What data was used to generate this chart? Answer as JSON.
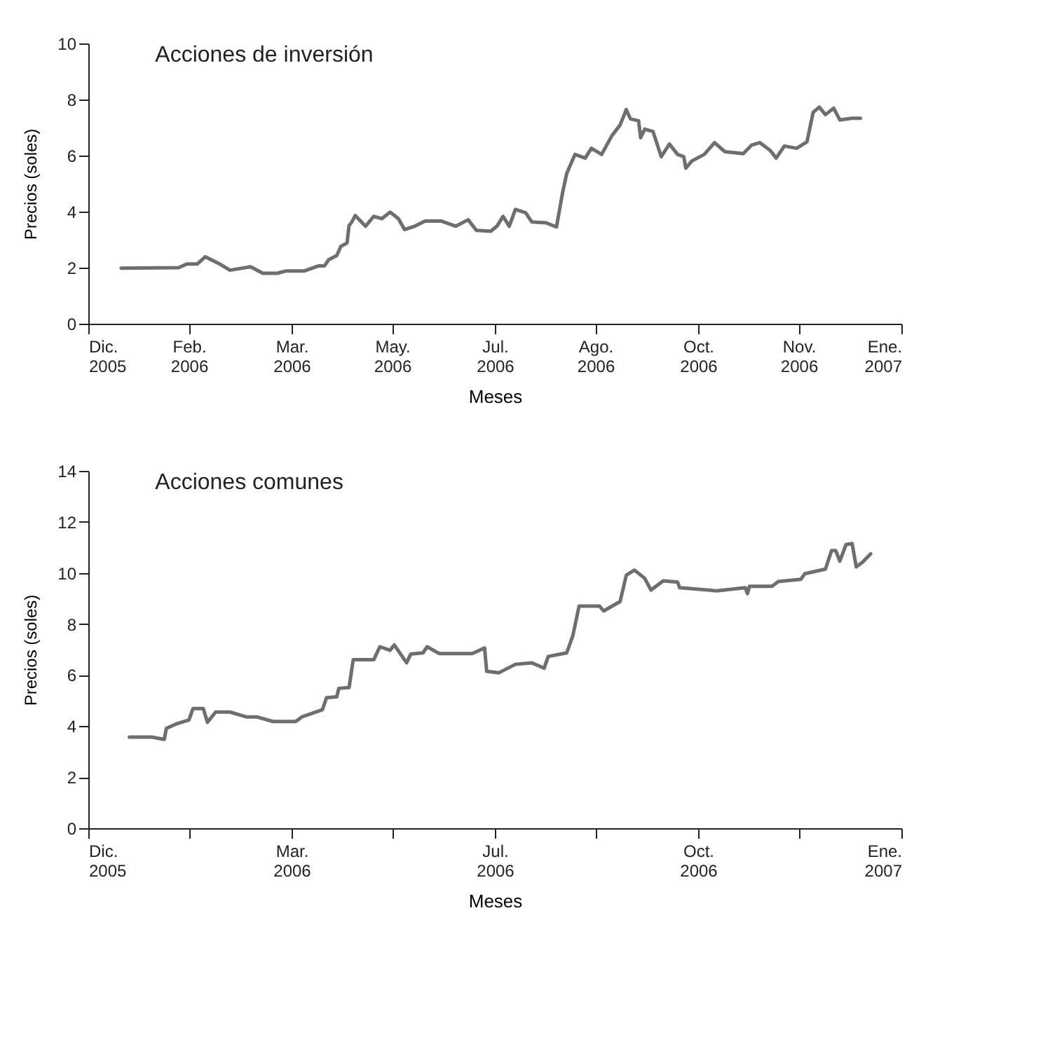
{
  "chart_data": [
    {
      "type": "line",
      "title": "Acciones de inversión",
      "xlabel": "Meses",
      "ylabel": "Precios (soles)",
      "xlim": [
        "2005-12-16",
        "2007-01-16"
      ],
      "xticks": [
        {
          "value": "2005-12-16",
          "label": "Dic. 2005"
        },
        {
          "value": "2006-02-03",
          "label": "Feb. 2006"
        },
        {
          "value": "2006-03-25",
          "label": "Mar. 2006"
        },
        {
          "value": "2006-05-13",
          "label": "May. 2006"
        },
        {
          "value": "2006-07-02",
          "label": "Jul. 2006"
        },
        {
          "value": "2006-08-20",
          "label": "Ago. 2006"
        },
        {
          "value": "2006-10-09",
          "label": "Oct. 2006"
        },
        {
          "value": "2006-11-27",
          "label": "Nov. 2006"
        },
        {
          "value": "2007-01-16",
          "label": "Ene. 2007"
        }
      ],
      "ylim": [
        0,
        10
      ],
      "yticks": [
        0,
        2,
        4,
        6,
        8,
        10
      ],
      "grid": false,
      "marker": "none",
      "line_style": "solid",
      "series": [
        {
          "color": "#6e6e6e",
          "x": [
            "2006-01-01",
            "2006-01-29",
            "2006-02-02",
            "2006-02-07",
            "2006-02-11",
            "2006-02-18",
            "2006-02-23",
            "2006-03-05",
            "2006-03-11",
            "2006-03-18",
            "2006-03-22",
            "2006-03-31",
            "2006-04-07",
            "2006-04-10",
            "2006-04-12",
            "2006-04-16",
            "2006-04-18",
            "2006-04-21",
            "2006-04-22",
            "2006-04-23",
            "2006-04-25",
            "2006-04-30",
            "2006-05-04",
            "2006-05-08",
            "2006-05-12",
            "2006-05-16",
            "2006-05-19",
            "2006-05-24",
            "2006-05-29",
            "2006-06-06",
            "2006-06-13",
            "2006-06-19",
            "2006-06-23",
            "2006-06-30",
            "2006-07-03",
            "2006-07-06",
            "2006-07-09",
            "2006-07-12",
            "2006-07-17",
            "2006-07-20",
            "2006-07-27",
            "2006-08-01",
            "2006-08-02",
            "2006-08-04",
            "2006-08-06",
            "2006-08-10",
            "2006-08-15",
            "2006-08-18",
            "2006-08-23",
            "2006-08-28",
            "2006-09-01",
            "2006-09-04",
            "2006-09-06",
            "2006-09-10",
            "2006-09-11",
            "2006-09-13",
            "2006-09-17",
            "2006-09-21",
            "2006-09-25",
            "2006-09-29",
            "2006-10-02",
            "2006-10-03",
            "2006-10-06",
            "2006-10-12",
            "2006-10-17",
            "2006-10-22",
            "2006-10-31",
            "2006-11-04",
            "2006-11-08",
            "2006-11-13",
            "2006-11-16",
            "2006-11-20",
            "2006-11-26",
            "2006-12-01",
            "2006-12-04",
            "2006-12-07",
            "2006-12-10",
            "2006-12-14",
            "2006-12-17",
            "2006-12-23",
            "2006-12-27"
          ],
          "values": [
            1.98,
            2.0,
            2.13,
            2.13,
            2.39,
            2.13,
            1.91,
            2.03,
            1.8,
            1.8,
            1.88,
            1.88,
            2.06,
            2.06,
            2.28,
            2.43,
            2.76,
            2.88,
            3.51,
            3.59,
            3.86,
            3.48,
            3.83,
            3.75,
            3.98,
            3.75,
            3.36,
            3.48,
            3.66,
            3.66,
            3.48,
            3.71,
            3.33,
            3.3,
            3.48,
            3.83,
            3.48,
            4.08,
            3.96,
            3.63,
            3.6,
            3.45,
            3.86,
            4.68,
            5.36,
            6.04,
            5.91,
            6.26,
            6.04,
            6.71,
            7.09,
            7.64,
            7.31,
            7.24,
            6.64,
            6.94,
            6.86,
            5.96,
            6.41,
            6.04,
            5.96,
            5.55,
            5.81,
            6.04,
            6.46,
            6.14,
            6.07,
            6.37,
            6.46,
            6.19,
            5.91,
            6.34,
            6.26,
            6.49,
            7.54,
            7.73,
            7.46,
            7.69,
            7.27,
            7.33,
            7.33
          ]
        }
      ]
    },
    {
      "type": "line",
      "title": "Acciones comunes",
      "xlabel": "Meses",
      "ylabel": "Precios (soles)",
      "xlim": [
        "2005-12-16",
        "2007-01-16"
      ],
      "xticks": [
        {
          "value": "2005-12-16",
          "label": "Dic. 2005"
        },
        {
          "value": "2006-02-03",
          "label": null
        },
        {
          "value": "2006-03-25",
          "label": "Mar. 2006"
        },
        {
          "value": "2006-05-13",
          "label": null
        },
        {
          "value": "2006-07-02",
          "label": "Jul. 2006"
        },
        {
          "value": "2006-08-20",
          "label": null
        },
        {
          "value": "2006-10-09",
          "label": "Oct. 2006"
        },
        {
          "value": "2006-11-27",
          "label": null
        },
        {
          "value": "2007-01-16",
          "label": "Ene. 2007"
        }
      ],
      "ylim": [
        0,
        14
      ],
      "yticks": [
        0,
        2,
        4,
        6,
        8,
        10,
        12,
        14
      ],
      "grid": false,
      "marker": "none",
      "line_style": "solid",
      "series": [
        {
          "color": "#6e6e6e",
          "x": [
            "2006-01-05",
            "2006-01-16",
            "2006-01-22",
            "2006-01-23",
            "2006-01-28",
            "2006-02-03",
            "2006-02-05",
            "2006-02-10",
            "2006-02-12",
            "2006-02-16",
            "2006-02-23",
            "2006-03-03",
            "2006-03-08",
            "2006-03-16",
            "2006-03-27",
            "2006-03-30",
            "2006-04-09",
            "2006-04-11",
            "2006-04-16",
            "2006-04-17",
            "2006-04-22",
            "2006-04-24",
            "2006-05-04",
            "2006-05-07",
            "2006-05-12",
            "2006-05-14",
            "2006-05-20",
            "2006-05-22",
            "2006-05-28",
            "2006-05-30",
            "2006-06-05",
            "2006-06-21",
            "2006-06-27",
            "2006-06-28",
            "2006-07-04",
            "2006-07-12",
            "2006-07-20",
            "2006-07-26",
            "2006-07-28",
            "2006-08-06",
            "2006-08-09",
            "2006-08-12",
            "2006-08-22",
            "2006-08-24",
            "2006-09-01",
            "2006-09-04",
            "2006-09-08",
            "2006-09-13",
            "2006-09-16",
            "2006-09-22",
            "2006-09-29",
            "2006-09-30",
            "2006-10-18",
            "2006-11-01",
            "2006-11-02",
            "2006-11-03",
            "2006-11-14",
            "2006-11-17",
            "2006-11-28",
            "2006-11-30",
            "2006-12-10",
            "2006-12-13",
            "2006-12-15",
            "2006-12-17",
            "2006-12-20",
            "2006-12-23",
            "2006-12-25",
            "2006-12-28",
            "2007-01-01"
          ],
          "values": [
            3.57,
            3.57,
            3.48,
            3.91,
            4.09,
            4.24,
            4.69,
            4.69,
            4.15,
            4.55,
            4.55,
            4.36,
            4.36,
            4.18,
            4.18,
            4.36,
            4.64,
            5.11,
            5.15,
            5.48,
            5.51,
            6.6,
            6.6,
            7.11,
            6.97,
            7.18,
            6.48,
            6.82,
            6.87,
            7.11,
            6.84,
            6.84,
            7.06,
            6.15,
            6.09,
            6.42,
            6.48,
            6.27,
            6.73,
            6.87,
            7.55,
            8.7,
            8.7,
            8.51,
            8.88,
            9.91,
            10.11,
            9.79,
            9.33,
            9.69,
            9.64,
            9.42,
            9.3,
            9.42,
            9.19,
            9.48,
            9.48,
            9.66,
            9.75,
            9.97,
            10.15,
            10.88,
            10.88,
            10.46,
            11.11,
            11.15,
            10.24,
            10.42,
            10.75
          ]
        }
      ]
    }
  ]
}
